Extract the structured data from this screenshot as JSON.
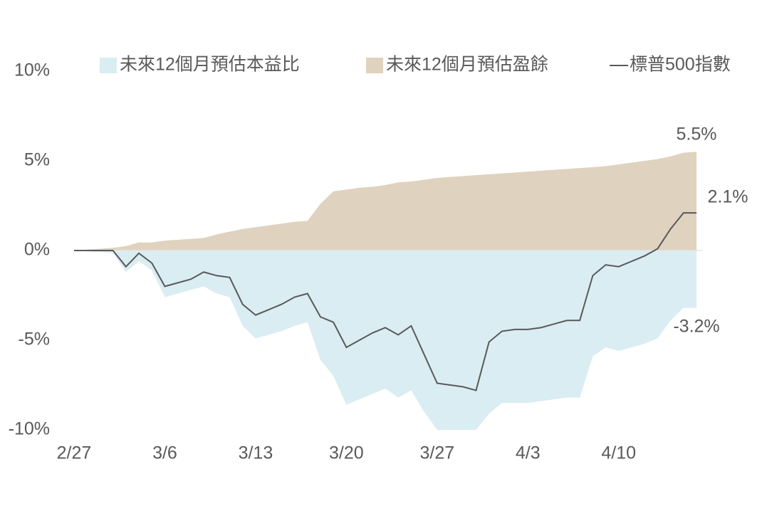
{
  "chart_data": {
    "type": "area-line",
    "categories": [
      "2/27",
      null,
      null,
      null,
      null,
      null,
      null,
      "3/6",
      null,
      null,
      null,
      null,
      null,
      null,
      "3/13",
      null,
      null,
      null,
      null,
      null,
      null,
      "3/20",
      null,
      null,
      null,
      null,
      null,
      null,
      "3/27",
      null,
      null,
      null,
      null,
      null,
      null,
      "4/3",
      null,
      null,
      null,
      null,
      null,
      null,
      "4/10",
      null,
      null,
      null,
      null,
      null,
      null
    ],
    "series": [
      {
        "name": "未來12個月預估本益比",
        "kind": "area",
        "color": "#daedf3",
        "values": [
          0,
          -0.05,
          -0.1,
          -0.15,
          -1.2,
          -0.6,
          -1.1,
          -2.6,
          -2.4,
          -2.2,
          -2.0,
          -2.4,
          -2.6,
          -4.2,
          -4.9,
          -4.7,
          -4.5,
          -4.2,
          -4.0,
          -6.1,
          -7.0,
          -8.6,
          -8.3,
          -8.0,
          -7.7,
          -8.2,
          -7.8,
          -9.0,
          -10,
          -10,
          -10,
          -10,
          -9.1,
          -8.5,
          -8.5,
          -8.5,
          -8.4,
          -8.3,
          -8.2,
          -8.2,
          -5.9,
          -5.4,
          -5.6,
          -5.4,
          -5.2,
          -4.9,
          -3.9,
          -3.2,
          -3.2
        ],
        "value_labels": [
          null,
          null,
          null,
          null,
          null,
          null,
          null,
          null,
          null,
          null,
          null,
          null,
          null,
          null,
          null,
          null,
          null,
          null,
          null,
          null,
          null,
          null,
          null,
          null,
          null,
          null,
          null,
          null,
          null,
          null,
          null,
          null,
          null,
          null,
          null,
          null,
          null,
          null,
          null,
          null,
          null,
          null,
          null,
          null,
          null,
          null,
          null,
          null,
          "-3.2%"
        ]
      },
      {
        "name": "未來12個月預估盈餘",
        "kind": "area",
        "color": "#dfd2bf",
        "values": [
          0,
          0.05,
          0.1,
          0.15,
          0.25,
          0.45,
          0.45,
          0.55,
          0.6,
          0.65,
          0.7,
          0.9,
          1.05,
          1.2,
          1.3,
          1.4,
          1.5,
          1.6,
          1.65,
          2.6,
          3.3,
          3.4,
          3.5,
          3.55,
          3.65,
          3.8,
          3.85,
          3.95,
          4.05,
          4.1,
          4.15,
          4.2,
          4.25,
          4.3,
          4.35,
          4.4,
          4.45,
          4.5,
          4.55,
          4.6,
          4.65,
          4.7,
          4.8,
          4.9,
          5.0,
          5.1,
          5.25,
          5.45,
          5.5
        ],
        "value_labels": [
          null,
          null,
          null,
          null,
          null,
          null,
          null,
          null,
          null,
          null,
          null,
          null,
          null,
          null,
          null,
          null,
          null,
          null,
          null,
          null,
          null,
          null,
          null,
          null,
          null,
          null,
          null,
          null,
          null,
          null,
          null,
          null,
          null,
          null,
          null,
          null,
          null,
          null,
          null,
          null,
          null,
          null,
          null,
          null,
          null,
          null,
          null,
          null,
          "5.5%"
        ]
      },
      {
        "name": "標普500指數",
        "kind": "line",
        "color": "#595959",
        "values": [
          0,
          0,
          0,
          0,
          -0.9,
          -0.15,
          -0.7,
          -2.0,
          -1.8,
          -1.6,
          -1.2,
          -1.4,
          -1.5,
          -3.0,
          -3.6,
          -3.3,
          -3.0,
          -2.6,
          -2.4,
          -3.7,
          -4.0,
          -5.4,
          -5.0,
          -4.6,
          -4.3,
          -4.7,
          -4.2,
          -5.8,
          -7.4,
          -7.5,
          -7.6,
          -7.8,
          -5.1,
          -4.5,
          -4.4,
          -4.4,
          -4.3,
          -4.1,
          -3.9,
          -3.9,
          -1.4,
          -0.8,
          -0.9,
          -0.6,
          -0.3,
          0.1,
          1.2,
          2.1,
          2.1
        ],
        "value_labels": [
          null,
          null,
          null,
          null,
          null,
          null,
          null,
          null,
          null,
          null,
          null,
          null,
          null,
          null,
          null,
          null,
          null,
          null,
          null,
          null,
          null,
          null,
          null,
          null,
          null,
          null,
          null,
          null,
          null,
          null,
          null,
          null,
          null,
          null,
          null,
          null,
          null,
          null,
          null,
          null,
          null,
          null,
          null,
          null,
          null,
          null,
          null,
          null,
          "2.1%"
        ]
      }
    ],
    "ylim": [
      -10,
      10
    ],
    "yticks": [
      {
        "value": -10,
        "label": "-10%"
      },
      {
        "value": -5,
        "label": "-5%"
      },
      {
        "value": 0,
        "label": "0%"
      },
      {
        "value": 5,
        "label": "5%"
      },
      {
        "value": 10,
        "label": "10%"
      }
    ],
    "legend": "top"
  }
}
